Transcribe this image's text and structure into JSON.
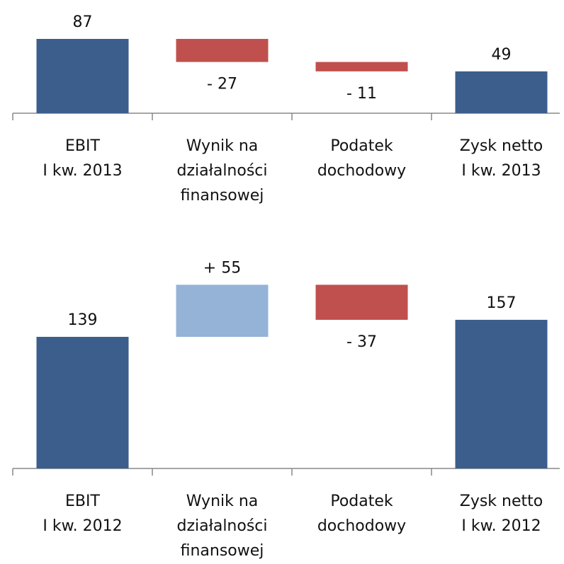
{
  "chart_data": [
    {
      "type": "waterfall",
      "categories": [
        [
          "EBIT",
          "I kw. 2013"
        ],
        [
          "Wynik na",
          "działalności",
          "finansowej"
        ],
        [
          "Podatek",
          "dochodowy"
        ],
        [
          "Zysk netto",
          "I kw. 2013"
        ]
      ],
      "values": [
        87,
        -27,
        -11,
        49
      ],
      "value_labels": [
        "87",
        "- 27",
        "- 11",
        "49"
      ],
      "colors": [
        "#3b5e8c",
        "#c0504d",
        "#c0504d",
        "#3b5e8c"
      ],
      "ylim": [
        0,
        100
      ]
    },
    {
      "type": "waterfall",
      "categories": [
        [
          "EBIT",
          "I kw. 2012"
        ],
        [
          "Wynik na",
          "działalności",
          "finansowej"
        ],
        [
          "Podatek",
          "dochodowy"
        ],
        [
          "Zysk netto",
          "I kw. 2012"
        ]
      ],
      "values": [
        139,
        55,
        -37,
        157
      ],
      "value_labels": [
        "139",
        "+ 55",
        "- 37",
        "157"
      ],
      "colors": [
        "#3b5e8c",
        "#95b3d7",
        "#c0504d",
        "#3b5e8c"
      ],
      "ylim": [
        0,
        200
      ]
    }
  ]
}
